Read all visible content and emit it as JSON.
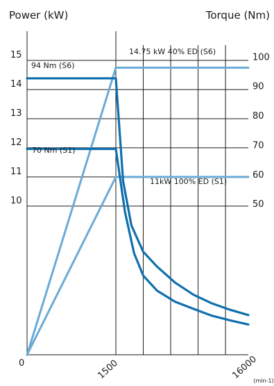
{
  "chart_data": {
    "type": "line",
    "left_axis_title": "Power (kW)",
    "right_axis_title": "Torque (Nm)",
    "x_unit_label": "(min-1)",
    "x_ticks": [
      "0",
      "1500",
      "16000"
    ],
    "x_gridlines": [
      1500,
      4500,
      7500,
      10500,
      13500
    ],
    "x_range": [
      0,
      16000
    ],
    "power_ticks": [
      "15",
      "14",
      "13",
      "12",
      "11",
      "10"
    ],
    "power_tick_values": [
      15,
      14,
      13,
      12,
      11,
      10
    ],
    "torque_ticks": [
      "100",
      "90",
      "80",
      "70",
      "60",
      "50"
    ],
    "torque_tick_values": [
      100,
      90,
      80,
      70,
      60,
      50
    ],
    "power_range": [
      4.9,
      16
    ],
    "torque_range": [
      0,
      110
    ],
    "colors": {
      "power": "#6aaad6",
      "torque": "#0f6fae",
      "axes": "#1a1a1a"
    },
    "series": [
      {
        "name": "14.75 kW 40% ED (S6)",
        "kind": "power",
        "x": [
          0,
          1500,
          16000
        ],
        "y": [
          4.9,
          14.75,
          14.75
        ]
      },
      {
        "name": "11kW 100% ED  (S1)",
        "kind": "power",
        "x": [
          0,
          1500,
          16000
        ],
        "y": [
          4.9,
          11,
          11
        ]
      },
      {
        "name": "94 Nm (S6)",
        "kind": "torque",
        "x": [
          0,
          1500,
          2300,
          3200,
          4500,
          6000,
          8000,
          10000,
          12000,
          14000,
          16000
        ],
        "y": [
          94,
          94,
          59,
          44,
          35,
          30,
          24.5,
          20.4,
          17.5,
          15.3,
          13.5
        ]
      },
      {
        "name": "70 Nm (S1)",
        "kind": "torque",
        "x": [
          0,
          1500,
          2500,
          3500,
          4500,
          6000,
          8000,
          10000,
          12000,
          14000,
          16000
        ],
        "y": [
          70,
          70,
          48.5,
          34.5,
          26.9,
          21.8,
          18,
          15.6,
          13.3,
          11.7,
          10.3
        ]
      }
    ]
  }
}
